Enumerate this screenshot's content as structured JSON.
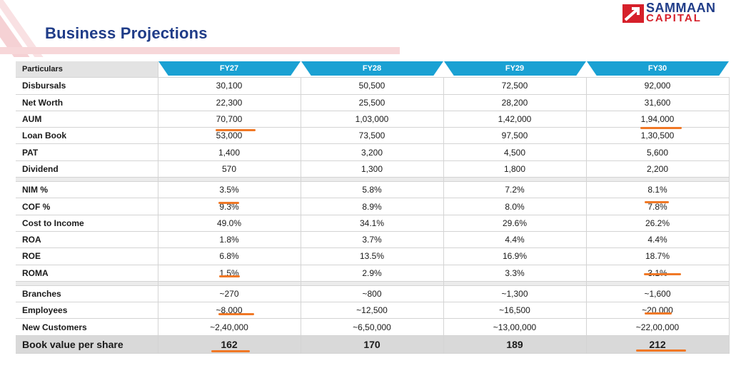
{
  "title": "Business Projections",
  "logo": {
    "line1": "SAMMAAN",
    "line2": "CAPITAL"
  },
  "table": {
    "header_label": "Particulars",
    "years": [
      "FY27",
      "FY28",
      "FY29",
      "FY30"
    ],
    "groups": [
      [
        {
          "label": "Disbursals",
          "values": [
            "30,100",
            "50,500",
            "72,500",
            "92,000"
          ]
        },
        {
          "label": "Net Worth",
          "values": [
            "22,300",
            "25,500",
            "28,200",
            "31,600"
          ]
        },
        {
          "label": "AUM",
          "values": [
            "70,700",
            "1,03,000",
            "1,42,000",
            "1,94,000"
          ]
        },
        {
          "label": "Loan Book",
          "values": [
            "53,000",
            "73,500",
            "97,500",
            "1,30,500"
          ]
        },
        {
          "label": "PAT",
          "values": [
            "1,400",
            "3,200",
            "4,500",
            "5,600"
          ]
        },
        {
          "label": "Dividend",
          "values": [
            "570",
            "1,300",
            "1,800",
            "2,200"
          ]
        }
      ],
      [
        {
          "label": "NIM %",
          "values": [
            "3.5%",
            "5.8%",
            "7.2%",
            "8.1%"
          ]
        },
        {
          "label": "COF %",
          "values": [
            "9.3%",
            "8.9%",
            "8.0%",
            "7.8%"
          ]
        },
        {
          "label": "Cost to Income",
          "values": [
            "49.0%",
            "34.1%",
            "29.6%",
            "26.2%"
          ]
        },
        {
          "label": "ROA",
          "values": [
            "1.8%",
            "3.7%",
            "4.4%",
            "4.4%"
          ]
        },
        {
          "label": "ROE",
          "values": [
            "6.8%",
            "13.5%",
            "16.9%",
            "18.7%"
          ]
        },
        {
          "label": "ROMA",
          "values": [
            "1.5%",
            "2.9%",
            "3.3%",
            "3.1%"
          ]
        }
      ],
      [
        {
          "label": "Branches",
          "values": [
            "~270",
            "~800",
            "~1,300",
            "~1,600"
          ]
        },
        {
          "label": "Employees",
          "values": [
            "~8,000",
            "~12,500",
            "~16,500",
            "~20,000"
          ]
        },
        {
          "label": "New Customers",
          "values": [
            "~2,40,000",
            "~6,50,000",
            "~13,00,000",
            "~22,00,000"
          ]
        }
      ]
    ],
    "footer": {
      "label": "Book value per share",
      "values": [
        "162",
        "170",
        "189",
        "212"
      ]
    }
  },
  "colors": {
    "title": "#1f3c88",
    "header_tab": "#1aa1d3",
    "annotation": "#f07826",
    "logo_red": "#d6202a"
  }
}
